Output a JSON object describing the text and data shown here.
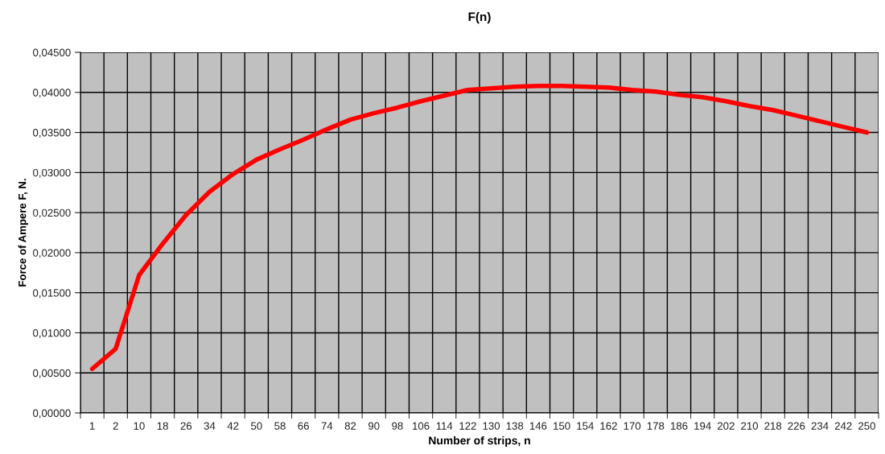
{
  "chart_data": {
    "type": "line",
    "title": "F(n)",
    "xlabel": "Number of strips, n",
    "ylabel": "Force of Ampere F, N.",
    "categories": [
      "1",
      "2",
      "10",
      "18",
      "26",
      "34",
      "42",
      "50",
      "58",
      "66",
      "74",
      "82",
      "90",
      "98",
      "106",
      "114",
      "122",
      "130",
      "138",
      "146",
      "150",
      "154",
      "162",
      "170",
      "178",
      "186",
      "194",
      "202",
      "210",
      "218",
      "226",
      "234",
      "242",
      "250"
    ],
    "series": [
      {
        "color": "#ff0000",
        "values": [
          0.0055,
          0.008,
          0.0172,
          0.0211,
          0.0247,
          0.0276,
          0.0298,
          0.0316,
          0.0329,
          0.0341,
          0.0354,
          0.0366,
          0.0374,
          0.0381,
          0.0389,
          0.0396,
          0.0403,
          0.0405,
          0.0407,
          0.0408,
          0.0408,
          0.0407,
          0.0406,
          0.0403,
          0.0401,
          0.0397,
          0.0394,
          0.0389,
          0.0383,
          0.0378,
          0.0371,
          0.0364,
          0.0357,
          0.035
        ]
      }
    ],
    "ylim": [
      0,
      0.045
    ],
    "yticks": [
      {
        "value": 0,
        "label": "0,00000"
      },
      {
        "value": 0.005,
        "label": "0,00500"
      },
      {
        "value": 0.01,
        "label": "0,01000"
      },
      {
        "value": 0.015,
        "label": "0,01500"
      },
      {
        "value": 0.02,
        "label": "0,02000"
      },
      {
        "value": 0.025,
        "label": "0,02500"
      },
      {
        "value": 0.03,
        "label": "0,03000"
      },
      {
        "value": 0.035,
        "label": "0,03500"
      },
      {
        "value": 0.04,
        "label": "0,04000"
      },
      {
        "value": 0.045,
        "label": "0,04500"
      }
    ],
    "grid": true,
    "marker": "none",
    "line_style": "solid"
  }
}
